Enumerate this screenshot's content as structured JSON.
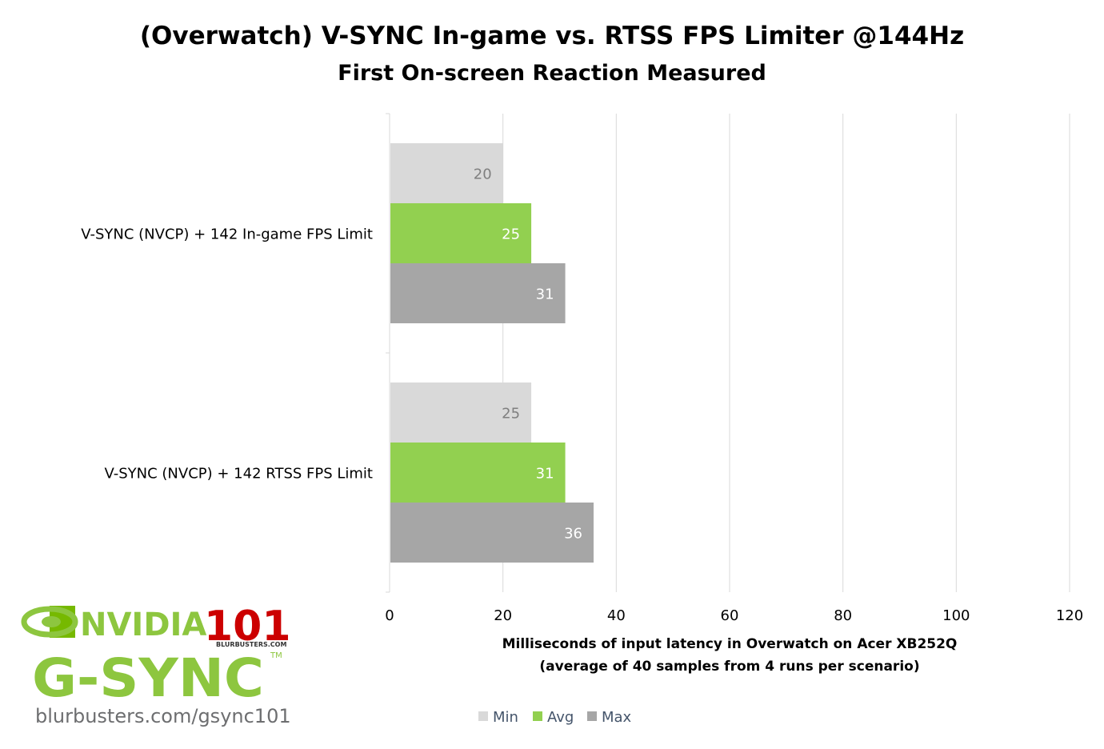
{
  "chart_data": {
    "type": "bar",
    "orientation": "horizontal",
    "title": "(Overwatch) V-SYNC In-game vs. RTSS FPS Limiter @144Hz",
    "subtitle": "First On-screen Reaction Measured",
    "categories": [
      "V-SYNC (NVCP) + 142 In-game FPS Limit",
      "V-SYNC (NVCP) + 142 RTSS FPS Limit"
    ],
    "series": [
      {
        "name": "Min",
        "values": [
          20,
          25
        ],
        "color": "#d9d9d9",
        "label_color": "#7f7f7f"
      },
      {
        "name": "Avg",
        "values": [
          25,
          31
        ],
        "color": "#92d050",
        "label_color": "#ffffff"
      },
      {
        "name": "Max",
        "values": [
          31,
          36
        ],
        "color": "#a6a6a6",
        "label_color": "#ffffff"
      }
    ],
    "xlim": [
      0,
      120
    ],
    "xticks": [
      "0",
      "20",
      "40",
      "60",
      "80",
      "100",
      "120"
    ],
    "xlabel": [
      "Milliseconds of input latency in Overwatch on Acer XB252Q",
      "(average of 40 samples from 4 runs per scenario)"
    ],
    "grid": true,
    "legend": "bottom"
  },
  "logo": {
    "brand": "NVIDIA",
    "product": "G-SYNC",
    "tm": "TM",
    "badge": "101",
    "badge_caption": "BLURBUSTERS.COM",
    "url": "blurbusters.com/gsync101"
  }
}
